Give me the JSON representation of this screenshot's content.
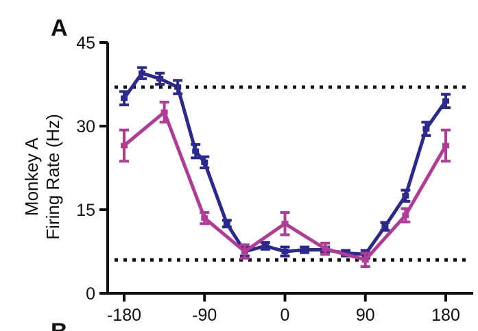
{
  "chart_data": {
    "type": "line",
    "panel_label": "A",
    "next_panel_label": "B",
    "ylabel_lines": [
      "Monkey A",
      "Firing Rate (Hz)"
    ],
    "xlabel": "",
    "xlim": [
      -190,
      190
    ],
    "ylim": [
      0,
      45
    ],
    "xticks": [
      -180,
      -90,
      0,
      90,
      180
    ],
    "yticks": [
      0,
      15,
      30,
      45
    ],
    "reference_lines": [
      37,
      6
    ],
    "series": [
      {
        "color": "#2b2a8c",
        "x": [
          -180,
          -160,
          -140,
          -120,
          -100,
          -90,
          -65,
          -45,
          -22,
          0,
          22,
          45,
          68,
          90,
          112,
          135,
          158,
          180
        ],
        "y": [
          35,
          39.5,
          38.5,
          37,
          25.5,
          23.5,
          12.5,
          7.5,
          8.5,
          7.5,
          7.8,
          7.8,
          7.2,
          7,
          12,
          17.5,
          29.5,
          34.5
        ],
        "err": [
          1.2,
          1.0,
          1.0,
          1.2,
          1.2,
          1.0,
          0.6,
          0.8,
          0.6,
          0.8,
          0.5,
          0.5,
          0.5,
          0.7,
          0.7,
          1.0,
          1.2,
          1.2
        ]
      },
      {
        "color": "#b03c96",
        "x": [
          -180,
          -135,
          -90,
          -45,
          0,
          45,
          90,
          135,
          180
        ],
        "y": [
          26.5,
          32.5,
          13.5,
          7.5,
          12.5,
          8,
          6,
          14,
          26.5
        ],
        "err": [
          2.8,
          1.8,
          1.0,
          1.2,
          2.0,
          1.0,
          1.2,
          1.2,
          2.8
        ]
      }
    ]
  }
}
